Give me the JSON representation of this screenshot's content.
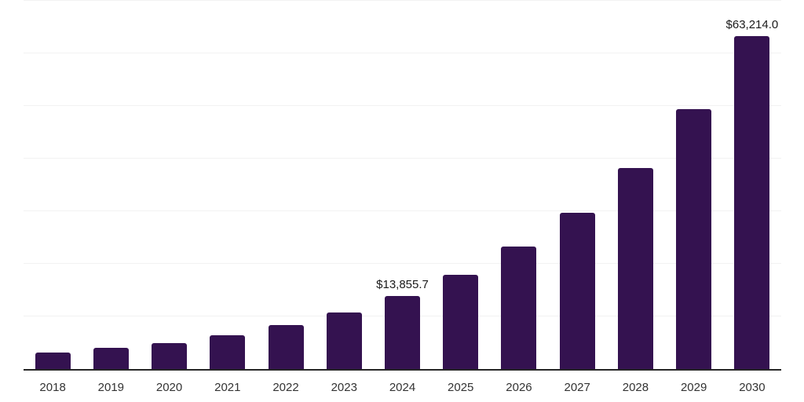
{
  "chart": {
    "background_color": "#ffffff",
    "bar_color": "#341250",
    "gridline_color": "#f2f2f2",
    "axis_line_color": "#262626",
    "data_label_color": "#1a1a1a",
    "tick_label_color": "#333333"
  },
  "chart_data": {
    "type": "bar",
    "title": "",
    "xlabel": "",
    "ylabel": "",
    "categories": [
      "2018",
      "2019",
      "2020",
      "2021",
      "2022",
      "2023",
      "2024",
      "2025",
      "2026",
      "2027",
      "2028",
      "2029",
      "2030"
    ],
    "values": [
      3100,
      4000,
      4950,
      6450,
      8350,
      10750,
      13855.7,
      17900,
      23250,
      29700,
      38200,
      49400,
      63214.0
    ],
    "data_labels": [
      "",
      "",
      "",
      "",
      "",
      "",
      "$13,855.7",
      "",
      "",
      "",
      "",
      "",
      "$63,214.0"
    ],
    "ylim": [
      0,
      70000
    ],
    "gridline_step": 10000,
    "grid": "horizontal",
    "legend": "none",
    "y_axis_labels_visible": false
  }
}
